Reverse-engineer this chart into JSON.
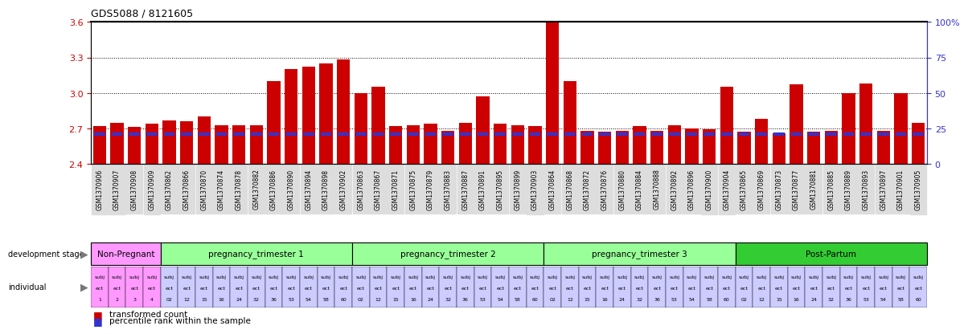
{
  "title": "GDS5088 / 8121605",
  "ylim": [
    2.4,
    3.6
  ],
  "yticks": [
    2.4,
    2.7,
    3.0,
    3.3,
    3.6
  ],
  "yticks_right": [
    0,
    25,
    50,
    75,
    100
  ],
  "hlines": [
    2.7,
    3.0,
    3.3
  ],
  "bar_color": "#cc0000",
  "blue_color": "#3333cc",
  "samples": [
    "GSM1370906",
    "GSM1370907",
    "GSM1370908",
    "GSM1370909",
    "GSM1370862",
    "GSM1370866",
    "GSM1370870",
    "GSM1370874",
    "GSM1370878",
    "GSM1370882",
    "GSM1370886",
    "GSM1370890",
    "GSM1370894",
    "GSM1370898",
    "GSM1370902",
    "GSM1370863",
    "GSM1370867",
    "GSM1370871",
    "GSM1370875",
    "GSM1370879",
    "GSM1370883",
    "GSM1370887",
    "GSM1370891",
    "GSM1370895",
    "GSM1370899",
    "GSM1370903",
    "GSM1370864",
    "GSM1370868",
    "GSM1370872",
    "GSM1370876",
    "GSM1370880",
    "GSM1370884",
    "GSM1370888",
    "GSM1370892",
    "GSM1370896",
    "GSM1370900",
    "GSM1370904",
    "GSM1370865",
    "GSM1370869",
    "GSM1370873",
    "GSM1370877",
    "GSM1370881",
    "GSM1370885",
    "GSM1370889",
    "GSM1370893",
    "GSM1370897",
    "GSM1370901",
    "GSM1370905"
  ],
  "bar_values": [
    2.72,
    2.75,
    2.71,
    2.74,
    2.77,
    2.76,
    2.8,
    2.73,
    2.73,
    2.73,
    3.1,
    3.2,
    3.22,
    3.25,
    3.28,
    3.0,
    3.05,
    2.72,
    2.73,
    2.74,
    2.68,
    2.75,
    2.97,
    2.74,
    2.73,
    2.72,
    3.6,
    3.1,
    2.68,
    2.67,
    2.68,
    2.72,
    2.68,
    2.73,
    2.7,
    2.69,
    3.05,
    2.67,
    2.78,
    2.66,
    3.07,
    2.67,
    2.68,
    3.0,
    3.08,
    2.68,
    3.0,
    2.75
  ],
  "blue_values": [
    2.655,
    2.655,
    2.655,
    2.655,
    2.655,
    2.655,
    2.655,
    2.655,
    2.655,
    2.655,
    2.655,
    2.655,
    2.655,
    2.655,
    2.655,
    2.655,
    2.655,
    2.655,
    2.655,
    2.655,
    2.655,
    2.655,
    2.655,
    2.655,
    2.655,
    2.655,
    2.655,
    2.655,
    2.655,
    2.655,
    2.655,
    2.655,
    2.655,
    2.655,
    2.655,
    2.655,
    2.655,
    2.655,
    2.655,
    2.655,
    2.655,
    2.655,
    2.655,
    2.655,
    2.655,
    2.655,
    2.655,
    2.655
  ],
  "stages": [
    {
      "label": "Non-Pregnant",
      "start": 0,
      "end": 4,
      "color": "#ff99ff"
    },
    {
      "label": "pregnancy_trimester 1",
      "start": 4,
      "end": 15,
      "color": "#99ff99"
    },
    {
      "label": "pregnancy_trimester 2",
      "start": 15,
      "end": 26,
      "color": "#99ff99"
    },
    {
      "label": "pregnancy_trimester 3",
      "start": 26,
      "end": 37,
      "color": "#99ff99"
    },
    {
      "label": "Post-Partum",
      "start": 37,
      "end": 48,
      "color": "#33cc33"
    }
  ],
  "ind_top": [
    "subj",
    "subj",
    "subj",
    "subj",
    "subj",
    "subj",
    "subj",
    "subj",
    "subj",
    "subj",
    "subj",
    "subj",
    "subj",
    "subj",
    "subj",
    "subj",
    "subj",
    "subj",
    "subj",
    "subj",
    "subj",
    "subj",
    "subj",
    "subj",
    "subj",
    "subj",
    "subj",
    "subj",
    "subj",
    "subj",
    "subj",
    "subj",
    "subj",
    "subj",
    "subj",
    "subj",
    "subj",
    "subj",
    "subj",
    "subj",
    "subj",
    "subj",
    "subj",
    "subj",
    "subj",
    "subj",
    "subj",
    "subj"
  ],
  "ind_mid": [
    "ect",
    "ect",
    "ect",
    "ect",
    "ect",
    "ect",
    "ect",
    "ect",
    "ect",
    "ect",
    "ect",
    "ect",
    "ect",
    "ect",
    "ect",
    "ect",
    "ect",
    "ect",
    "ect",
    "ect",
    "ect",
    "ect",
    "ect",
    "ect",
    "ect",
    "ect",
    "ect",
    "ect",
    "ect",
    "ect",
    "ect",
    "ect",
    "ect",
    "ect",
    "ect",
    "ect",
    "ect",
    "ect",
    "ect",
    "ect",
    "ect",
    "ect",
    "ect",
    "ect",
    "ect",
    "ect",
    "ect",
    "ect"
  ],
  "ind_bot": [
    "1",
    "2",
    "3",
    "4",
    "02",
    "12",
    "15",
    "16",
    "24",
    "32",
    "36",
    "53",
    "54",
    "58",
    "60",
    "02",
    "12",
    "15",
    "16",
    "24",
    "32",
    "36",
    "53",
    "54",
    "58",
    "60",
    "02",
    "12",
    "15",
    "16",
    "24",
    "32",
    "36",
    "53",
    "54",
    "58",
    "60",
    "02",
    "12",
    "15",
    "16",
    "24",
    "32",
    "36",
    "53",
    "54",
    "58",
    "60"
  ],
  "ind_colors": [
    "#ff99ff",
    "#ff99ff",
    "#ff99ff",
    "#ff99ff",
    "#ccccff",
    "#ccccff",
    "#ccccff",
    "#ccccff",
    "#ccccff",
    "#ccccff",
    "#ccccff",
    "#ccccff",
    "#ccccff",
    "#ccccff",
    "#ccccff",
    "#ccccff",
    "#ccccff",
    "#ccccff",
    "#ccccff",
    "#ccccff",
    "#ccccff",
    "#ccccff",
    "#ccccff",
    "#ccccff",
    "#ccccff",
    "#ccccff",
    "#ccccff",
    "#ccccff",
    "#ccccff",
    "#ccccff",
    "#ccccff",
    "#ccccff",
    "#ccccff",
    "#ccccff",
    "#ccccff",
    "#ccccff",
    "#ccccff",
    "#ccccff",
    "#ccccff",
    "#ccccff",
    "#ccccff",
    "#ccccff",
    "#ccccff",
    "#ccccff",
    "#ccccff",
    "#ccccff",
    "#ccccff",
    "#ccccff"
  ],
  "xtick_bg": "#dddddd",
  "legend_bar": "transformed count",
  "legend_blue": "percentile rank within the sample"
}
